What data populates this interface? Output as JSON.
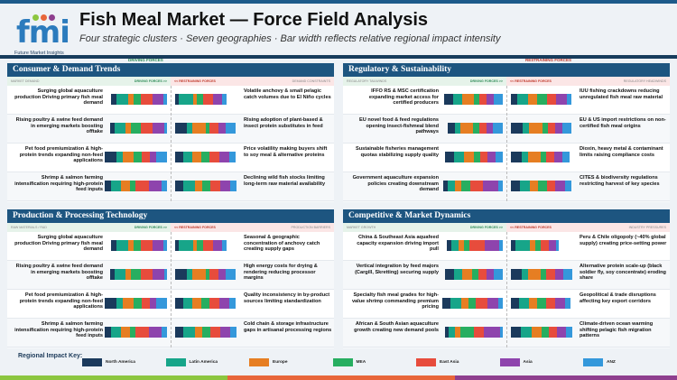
{
  "header": {
    "title": "Fish Meal Market — Force Field Analysis",
    "subtitle": "Four strategic clusters · Seven geographies · Bar width reflects relative regional impact intensity",
    "logo_text": "fmi",
    "logo_sub": "Future Market Insights"
  },
  "force_labels": {
    "driving": "DRIVING FORCES",
    "restraining": "RESTRAINING FORCES"
  },
  "column_labels": {
    "driving": "DRIVING FORCES >>",
    "restraining": "<< RESTRAINING FORCES"
  },
  "colors": {
    "North America": "#1b3a5c",
    "Latin America": "#17a589",
    "Europe": "#e67e22",
    "MEA": "#27ae60",
    "East Asia": "#e74c3c",
    "Asia": "#8e44ad",
    "ANZ": "#3498db"
  },
  "legend": {
    "title": "Regional Impact Key:",
    "items": [
      "North America",
      "Latin America",
      "Europe",
      "MEA",
      "East Asia",
      "Asia",
      "ANZ"
    ]
  },
  "panels": [
    {
      "title": "Consumer & Demand Trends",
      "left_tag": "MARKET DEMAND",
      "right_tag": "DEMAND CONSTRAINTS",
      "rows": [
        {
          "driver": "Surging global aquaculture production Driving primary fish meal demand",
          "driver_impact": [
            6,
            12,
            6,
            7,
            13,
            11,
            4
          ],
          "restraint": "Volatile anchovy & small pelagic catch volumes due to El Niño cycles",
          "restraint_impact": [
            4,
            15,
            4,
            7,
            10,
            10,
            4
          ]
        },
        {
          "driver": "Rising poultry & swine feed demand in emerging markets boosting offtake",
          "driver_impact": [
            5,
            11,
            6,
            10,
            13,
            12,
            3
          ],
          "restraint": "Rising adoption of plant-based & insect protein substitutes in feed",
          "restraint_impact": [
            12,
            6,
            14,
            4,
            10,
            7,
            11
          ]
        },
        {
          "driver": "Pet food premiumization & high-protein trends expanding non-feed applications",
          "driver_impact": [
            13,
            6,
            12,
            8,
            9,
            7,
            11
          ],
          "restraint": "Price volatility making buyers shift to soy meal & alternative proteins",
          "restraint_impact": [
            9,
            9,
            10,
            8,
            11,
            10,
            7
          ]
        },
        {
          "driver": "Shrimp & salmon farming intensification requiring high-protein feed inputs",
          "driver_impact": [
            7,
            10,
            10,
            6,
            14,
            13,
            6
          ],
          "restraint": "Declining wild fish stocks limiting long-term raw material availability",
          "restraint_impact": [
            9,
            12,
            8,
            8,
            11,
            10,
            7
          ]
        }
      ]
    },
    {
      "title": "Regulatory & Sustainability",
      "left_tag": "REGULATORY TAILWINDS",
      "right_tag": "REGULATORY HEADWINDS",
      "rows": [
        {
          "driver": "IFFO RS & MSC certification expanding market access for certified producers",
          "driver_impact": [
            10,
            9,
            13,
            5,
            8,
            8,
            9
          ],
          "restraint": "IUU fishing crackdowns reducing unregulated fish meal raw material",
          "restraint_impact": [
            7,
            11,
            10,
            10,
            10,
            11,
            5
          ]
        },
        {
          "driver": "EU novel food & feed regulations opening insect-fishmeal blend pathways",
          "driver_impact": [
            8,
            5,
            14,
            6,
            8,
            7,
            10
          ],
          "restraint": "EU & US import restrictions on non-certified fish meal origins",
          "restraint_impact": [
            12,
            7,
            14,
            6,
            8,
            7,
            10
          ]
        },
        {
          "driver": "Sustainable fisheries management quotas stabilizing supply quality",
          "driver_impact": [
            10,
            10,
            11,
            6,
            8,
            8,
            8
          ],
          "restraint": "Dioxin, heavy metal & contaminant limits raising compliance costs",
          "restraint_impact": [
            11,
            7,
            13,
            6,
            9,
            8,
            8
          ]
        },
        {
          "driver": "Government aquaculture expansion policies creating downstream demand",
          "driver_impact": [
            5,
            8,
            6,
            10,
            13,
            16,
            5
          ],
          "restraint": "CITES & biodiversity regulations restricting harvest of key species",
          "restraint_impact": [
            10,
            10,
            9,
            9,
            9,
            10,
            7
          ]
        }
      ]
    },
    {
      "title": "Production & Processing Technology",
      "left_tag": "RAW MATERIALS / R&D",
      "right_tag": "PRODUCTION BARRIERS",
      "rows": [
        {
          "driver": "Surging global aquaculture production Driving primary fish meal demand",
          "driver_impact": [
            6,
            12,
            6,
            7,
            13,
            11,
            4
          ],
          "restraint": "Seasonal & geographic concentration of anchovy catch creating supply gaps",
          "restraint_impact": [
            4,
            15,
            4,
            7,
            10,
            10,
            4
          ]
        },
        {
          "driver": "Rising poultry & swine feed demand in emerging markets boosting offtake",
          "driver_impact": [
            5,
            11,
            6,
            10,
            13,
            12,
            3
          ],
          "restraint": "High energy costs for drying & rendering reducing processor margins",
          "restraint_impact": [
            12,
            6,
            14,
            4,
            10,
            7,
            11
          ]
        },
        {
          "driver": "Pet food premiumization & high-protein trends expanding non-feed applications",
          "driver_impact": [
            13,
            6,
            12,
            8,
            9,
            7,
            11
          ],
          "restraint": "Quality inconsistency in by-product sources limiting standardization",
          "restraint_impact": [
            9,
            9,
            10,
            8,
            11,
            10,
            7
          ]
        },
        {
          "driver": "Shrimp & salmon farming intensification requiring high-protein feed inputs",
          "driver_impact": [
            7,
            10,
            10,
            6,
            14,
            13,
            6
          ],
          "restraint": "Cold chain & storage infrastructure gaps in artisanal processing regions",
          "restraint_impact": [
            9,
            12,
            8,
            8,
            11,
            10,
            7
          ]
        }
      ]
    },
    {
      "title": "Competitive & Market Dynamics",
      "left_tag": "MARKET GROWTH",
      "right_tag": "INDUSTRY PRESSURES",
      "rows": [
        {
          "driver": "China & Southeast Asia aquafeed capacity expansion driving import pull",
          "driver_impact": [
            5,
            7,
            6,
            6,
            16,
            15,
            4
          ],
          "restraint": "Peru & Chile oligopoly (~40% global supply) creating price-setting power",
          "restraint_impact": [
            5,
            15,
            6,
            5,
            9,
            8,
            3
          ]
        },
        {
          "driver": "Vertical integration by feed majors (Cargill, Skretting) securing supply",
          "driver_impact": [
            10,
            8,
            11,
            6,
            9,
            8,
            9
          ],
          "restraint": "Alternative protein scale-up (black soldier fly, soy concentrate) eroding share",
          "restraint_impact": [
            11,
            7,
            13,
            6,
            10,
            8,
            10
          ]
        },
        {
          "driver": "Specialty fish meal grades for high-value shrimp commanding premium pricing",
          "driver_impact": [
            9,
            11,
            8,
            7,
            13,
            11,
            5
          ],
          "restraint": "Geopolitical & trade disruptions affecting key export corridors",
          "restraint_impact": [
            9,
            10,
            9,
            9,
            10,
            10,
            6
          ]
        },
        {
          "driver": "African & South Asian aquaculture growth creating new demand pools",
          "driver_impact": [
            4,
            7,
            5,
            15,
            10,
            17,
            3
          ],
          "restraint": "Climate-driven ocean warming shifting pelagic fish migration patterns",
          "restraint_impact": [
            10,
            12,
            10,
            8,
            9,
            9,
            7
          ]
        }
      ]
    }
  ]
}
